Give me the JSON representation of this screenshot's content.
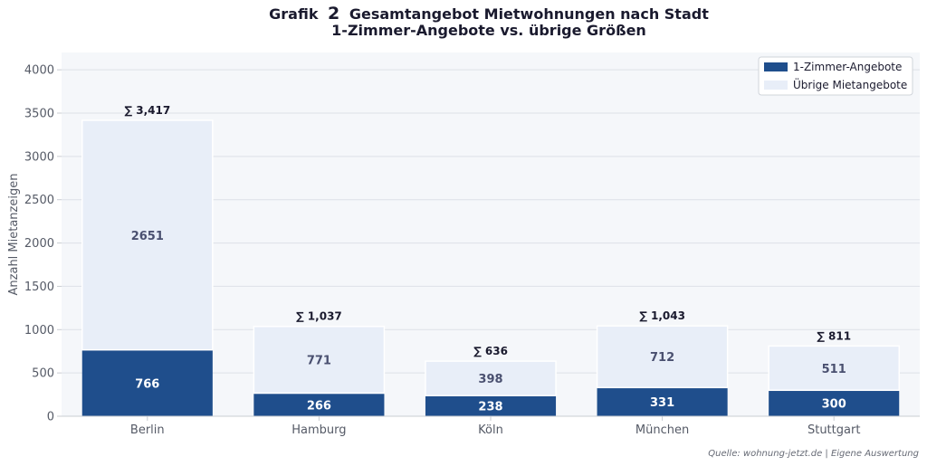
{
  "colors": {
    "one_room": "#1f4e8c",
    "other": "#e8eef8",
    "plot_bg": "#f5f7fa",
    "grid": "#dde1e7",
    "axis": "#c9ccd2"
  },
  "chart_data": {
    "type": "bar",
    "stacked": true,
    "title_prefix": "Grafik",
    "title_number": "2",
    "title_rest": "Gesamtangebot Mietwohnungen nach Stadt",
    "subtitle": "1-Zimmer-Angebote vs. übrige Größen",
    "xlabel": "",
    "ylabel": "Anzahl Mietanzeigen",
    "ylim": [
      0,
      4200
    ],
    "yticks": [
      0,
      500,
      1000,
      1500,
      2000,
      2500,
      3000,
      3500,
      4000
    ],
    "grid": true,
    "legend_position": "top-right",
    "categories": [
      "Berlin",
      "Hamburg",
      "Köln",
      "München",
      "Stuttgart"
    ],
    "series": [
      {
        "name": "1-Zimmer-Angebote",
        "values": [
          766,
          266,
          238,
          331,
          300
        ]
      },
      {
        "name": "Übrige Mietangebote",
        "values": [
          2651,
          771,
          398,
          712,
          511
        ]
      }
    ],
    "totals": [
      "∑ 3,417",
      "∑ 1,037",
      "∑ 636",
      "∑ 1,043",
      "∑ 811"
    ],
    "source": "Quelle: wohnung-jetzt.de | Eigene Auswertung"
  }
}
